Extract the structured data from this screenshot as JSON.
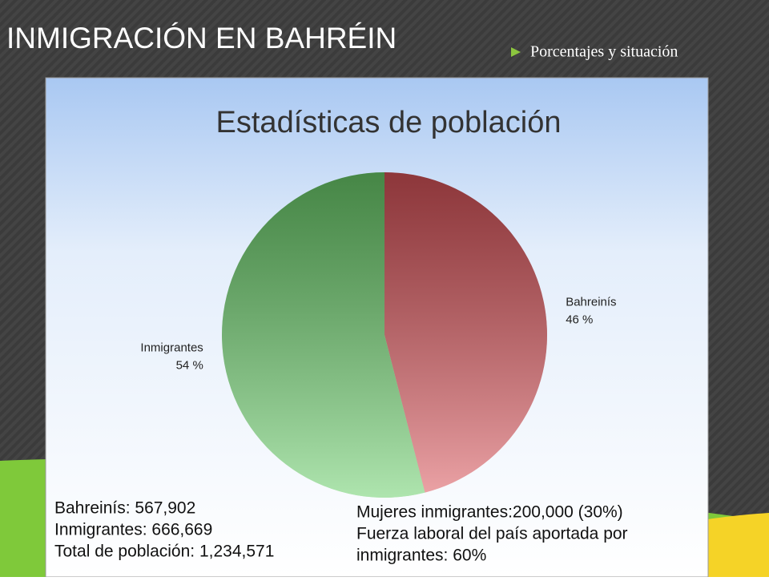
{
  "slide": {
    "title": "INMIGRACIÓN EN BAHRÉIN",
    "bullet": "Porcentajes y situación"
  },
  "chart_data": {
    "type": "pie",
    "title": "Estadísticas de población",
    "categories": [
      "Bahreinís",
      "Inmigrantes"
    ],
    "values": [
      46,
      54
    ],
    "value_labels": [
      "46 %",
      "54 %"
    ],
    "colors": [
      "#d9545a",
      "#6ccf6c"
    ],
    "annotations_left": [
      "Bahreinís: 567,902",
      "Inmigrantes: 666,669",
      "Total de población: 1,234,571"
    ],
    "annotations_right": [
      "Mujeres inmigrantes:200,000 (30%)",
      "Fuerza laboral del país aportada por",
      "inmigrantes: 60%"
    ]
  }
}
